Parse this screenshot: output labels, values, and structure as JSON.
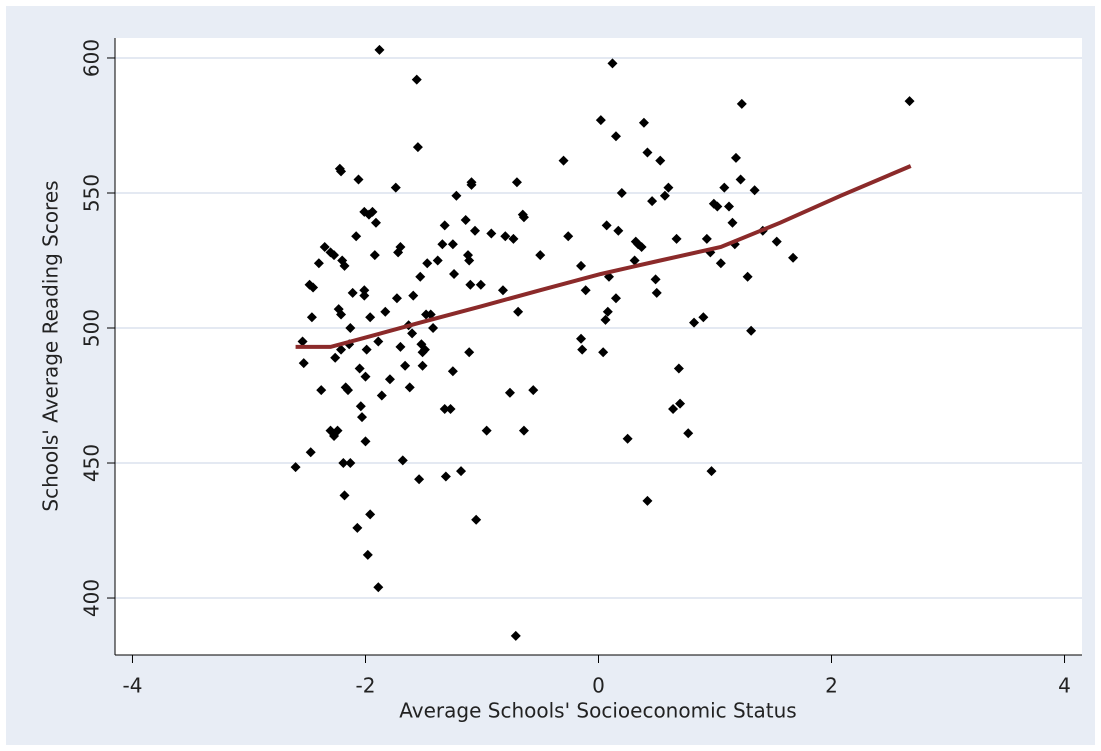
{
  "chart_data": {
    "type": "scatter",
    "x_label": "Average Schools' Socioeconomic Status",
    "y_label": "Schools'  Average Reading Scores",
    "xlim": [
      -4.15,
      4.15
    ],
    "ylim": [
      378.9,
      607.4
    ],
    "xticks": [
      -4,
      -2,
      0,
      2,
      4
    ],
    "yticks": [
      400,
      450,
      500,
      550,
      600
    ],
    "grid": true,
    "series": [
      {
        "style": "marker",
        "color": "#000000",
        "x": [
          -2.6,
          -2.54,
          -2.53,
          -2.48,
          -2.45,
          -2.47,
          -2.46,
          -2.4,
          -2.38,
          -2.35,
          -2.3,
          -2.3,
          -2.27,
          -2.27,
          -2.26,
          -2.22,
          -2.21,
          -2.23,
          -2.21,
          -2.24,
          -2.2,
          -2.18,
          -2.21,
          -2.19,
          -2.18,
          -2.17,
          -2.15,
          -2.13,
          -2.11,
          -2.13,
          -2.14,
          -2.08,
          -2.07,
          -2.06,
          -2.05,
          -2.04,
          -2.03,
          -2.01,
          -2.01,
          -2.01,
          -2.0,
          -1.99,
          -2.0,
          -1.98,
          -1.97,
          -1.96,
          -1.96,
          -1.94,
          -1.92,
          -1.91,
          -1.89,
          -1.88,
          -1.89,
          -1.86,
          -1.83,
          -1.79,
          -1.74,
          -1.73,
          -1.72,
          -1.7,
          -1.7,
          -1.68,
          -1.66,
          -1.63,
          -1.62,
          -1.6,
          -1.59,
          -1.56,
          -1.55,
          -1.54,
          -1.52,
          -1.53,
          -1.51,
          -1.51,
          -1.49,
          -1.48,
          -1.47,
          -1.44,
          -1.42,
          -1.38,
          -1.34,
          -1.32,
          -1.32,
          -1.31,
          -1.27,
          -1.25,
          -1.25,
          -1.24,
          -1.22,
          -1.18,
          -1.14,
          -1.12,
          -1.11,
          -1.11,
          -1.1,
          -1.09,
          -1.09,
          -1.06,
          -1.05,
          -1.01,
          -0.96,
          -0.92,
          -0.82,
          -0.8,
          -0.76,
          -0.73,
          -0.71,
          -0.7,
          -0.69,
          -0.65,
          -0.64,
          -0.64,
          -0.56,
          -0.5,
          -0.3,
          -0.26,
          -0.15,
          -0.15,
          -0.14,
          -0.11,
          0.02,
          0.04,
          0.06,
          0.07,
          0.08,
          0.09,
          0.12,
          0.15,
          0.15,
          0.17,
          0.2,
          0.25,
          0.31,
          0.32,
          0.34,
          0.37,
          0.39,
          0.42,
          0.42,
          0.46,
          0.49,
          0.5,
          0.53,
          0.57,
          0.6,
          0.64,
          0.67,
          0.69,
          0.7,
          0.77,
          0.82,
          0.9,
          0.93,
          0.96,
          0.97,
          0.99,
          1.02,
          1.05,
          1.08,
          1.12,
          1.15,
          1.17,
          1.18,
          1.22,
          1.23,
          1.28,
          1.31,
          1.34,
          1.41,
          1.53,
          1.67,
          2.67
        ],
        "values": [
          448.5,
          495,
          487,
          516,
          515,
          454,
          504,
          524,
          477,
          530,
          528,
          462,
          527,
          460,
          489,
          559,
          558,
          507,
          505,
          462,
          525,
          523,
          492,
          450,
          438,
          478,
          477,
          450,
          513,
          500,
          494,
          534,
          426,
          555,
          485,
          471,
          467,
          514,
          512,
          543,
          482,
          492,
          458,
          416,
          542,
          504,
          431,
          543,
          527,
          539,
          404,
          603,
          495,
          475,
          506,
          481,
          552,
          511,
          528,
          530,
          493,
          451,
          486,
          501,
          478,
          498,
          512,
          592,
          567,
          444,
          494,
          519,
          486,
          491,
          492,
          505,
          524,
          505,
          500,
          525,
          531,
          538,
          470,
          445,
          470,
          484,
          531,
          520,
          549,
          447,
          540,
          527,
          525,
          491,
          516,
          553,
          554,
          536,
          429,
          516,
          462,
          535,
          514,
          534,
          476,
          533,
          386,
          554,
          506,
          542,
          541,
          462,
          477,
          527,
          562,
          534,
          523,
          496,
          492,
          514,
          577,
          491,
          503,
          538,
          506,
          519,
          598,
          511,
          571,
          536,
          550,
          459,
          525,
          532,
          531,
          530,
          576,
          436,
          565,
          547,
          518,
          513,
          562,
          549,
          552,
          470,
          533,
          485,
          472,
          461,
          502,
          504,
          533,
          528,
          447,
          546,
          545,
          524,
          552,
          545,
          539,
          531,
          563,
          555,
          583,
          519,
          499,
          551,
          536,
          532,
          526,
          584
        ]
      },
      {
        "style": "line",
        "color": "#8b2a2a",
        "x": [
          -2.6,
          -2.3,
          -2.04,
          -1.53,
          -1.01,
          -0.5,
          0.02,
          0.53,
          1.05,
          1.56,
          2.08,
          2.68
        ],
        "values": [
          493,
          493,
          496,
          502,
          508,
          514,
          520,
          525,
          530,
          539,
          549,
          560
        ]
      }
    ]
  }
}
